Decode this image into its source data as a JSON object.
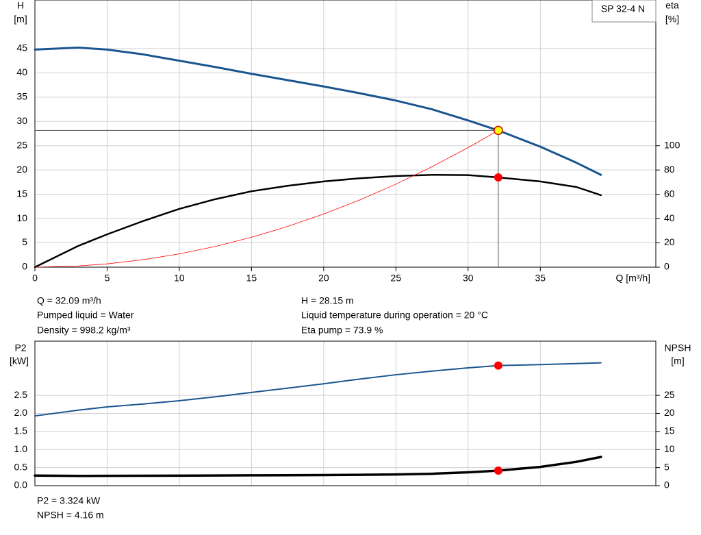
{
  "chart_data": [
    {
      "type": "line",
      "title": "SP 32-4 N",
      "y_label": "H",
      "y_unit": "[m]",
      "y2_label": "eta",
      "y2_unit": "[%]",
      "x_label": "Q [m³/h]",
      "xlim": [
        0,
        43
      ],
      "xticks": [
        0,
        5,
        10,
        15,
        20,
        25,
        30,
        35
      ],
      "ylim": [
        0,
        55
      ],
      "yticks": [
        0,
        5,
        10,
        15,
        20,
        25,
        30,
        35,
        40,
        45
      ],
      "y2lim": [
        0,
        220
      ],
      "y2ticks": [
        0,
        20,
        40,
        60,
        80,
        100
      ],
      "grid": true,
      "x": [
        0,
        3,
        5,
        7.5,
        10,
        12.5,
        15,
        17.5,
        20,
        22.5,
        25,
        27.5,
        30,
        32.09,
        35,
        37.5,
        39.2
      ],
      "series": [
        {
          "color": "#1a5590",
          "values": [
            44.8,
            45.2,
            44.8,
            43.8,
            42.5,
            41.2,
            39.8,
            38.5,
            37.2,
            35.8,
            34.3,
            32.5,
            30.2,
            28.15,
            24.8,
            21.5,
            19.0
          ]
        },
        {
          "color": "#000000",
          "axis": "y2",
          "values": [
            0,
            17.5,
            27,
            38,
            48,
            56,
            62.5,
            67,
            70.6,
            73.2,
            75,
            76,
            75.8,
            73.9,
            70.6,
            66,
            59.3
          ]
        },
        {
          "color": "#ff0000",
          "values": [
            0,
            0.25,
            0.68,
            1.54,
            2.73,
            4.27,
            6.15,
            8.37,
            10.94,
            13.84,
            17.09,
            20.68,
            24.61,
            28.15,
            null,
            null,
            null
          ]
        }
      ],
      "markers": [
        {
          "x": 32.09,
          "y": 28.15,
          "color": "#ffff00"
        },
        {
          "x": 32.09,
          "y": 73.9,
          "axis": "y2",
          "color": "#ff0000"
        }
      ],
      "info": [
        "Q = 32.09 m³/h",
        "Pumped liquid = Water",
        "Density = 998.2 kg/m³",
        "H = 28.15 m",
        "Liquid temperature during operation = 20 °C",
        "Eta pump = 73.9 %"
      ]
    },
    {
      "type": "line",
      "y_label": "P2",
      "y_unit": "[kW]",
      "y2_label": "NPSH",
      "y2_unit": "[m]",
      "xlim": [
        0,
        43
      ],
      "xticks": [
        0,
        5,
        10,
        15,
        20,
        25,
        30,
        35
      ],
      "ylim": [
        0,
        4
      ],
      "yticks": [
        {
          "value": 0,
          "label": "0.0"
        },
        {
          "value": 0.5,
          "label": "0.5"
        },
        {
          "value": 1,
          "label": "1.0"
        },
        {
          "value": 1.5,
          "label": "1.5"
        },
        {
          "value": 2,
          "label": "2.0"
        },
        2.5
      ],
      "y2lim": [
        0,
        40
      ],
      "y2ticks": [
        0,
        5,
        10,
        15,
        20,
        25
      ],
      "grid": true,
      "x": [
        0,
        3,
        5,
        7.5,
        10,
        12.5,
        15,
        17.5,
        20,
        22.5,
        25,
        27.5,
        30,
        32.09,
        35,
        37.5,
        39.2
      ],
      "series": [
        {
          "color": "#1a5590",
          "values": [
            1.93,
            2.09,
            2.18,
            2.26,
            2.35,
            2.46,
            2.58,
            2.7,
            2.82,
            2.95,
            3.07,
            3.17,
            3.26,
            3.324,
            3.35,
            3.38,
            3.4
          ]
        },
        {
          "color": "#000000",
          "axis": "y2",
          "values": [
            2.8,
            2.7,
            2.72,
            2.75,
            2.78,
            2.82,
            2.86,
            2.9,
            2.95,
            3.0,
            3.1,
            3.3,
            3.7,
            4.16,
            5.2,
            6.6,
            7.95
          ]
        }
      ],
      "markers": [
        {
          "x": 32.09,
          "y": 3.324,
          "color": "#ff0000"
        },
        {
          "x": 32.09,
          "y": 4.16,
          "axis": "y2",
          "color": "#ff0000"
        }
      ],
      "info": [
        "P2 = 3.324 kW",
        "NPSH = 4.16 m"
      ]
    }
  ]
}
